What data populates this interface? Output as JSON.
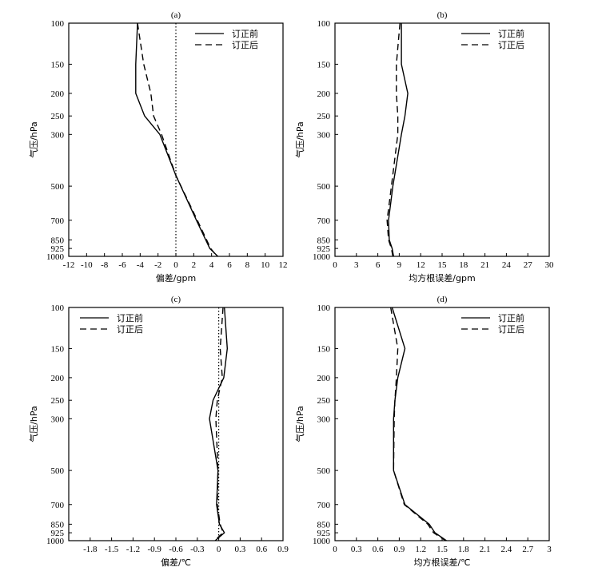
{
  "figure": {
    "line_color": "#000000",
    "line_styles": {
      "solid": "solid",
      "dashed": "dashed",
      "dotted_zero": "dotted"
    }
  },
  "chart_data": [
    {
      "type": "line",
      "panel": "(a)",
      "xlabel": "偏差/gpm",
      "ylabel": "气压/hPa",
      "xlim": [
        -12,
        12
      ],
      "xticks": [
        -12,
        -10,
        -8,
        -6,
        -4,
        -2,
        0,
        2,
        4,
        6,
        8,
        10,
        12
      ],
      "yticks": [
        100,
        150,
        200,
        250,
        300,
        500,
        700,
        850,
        925,
        1000
      ],
      "yscale": "log-inverted",
      "zero_line": true,
      "legend_position": "top-right",
      "series": [
        {
          "name": "订正前",
          "style": "solid",
          "points": [
            [
              -4.3,
              100
            ],
            [
              -4.5,
              150
            ],
            [
              -4.5,
              200
            ],
            [
              -3.5,
              250
            ],
            [
              -1.8,
              300
            ],
            [
              0,
              450
            ],
            [
              2.3,
              700
            ],
            [
              3.8,
              925
            ],
            [
              4.7,
              1000
            ]
          ]
        },
        {
          "name": "订正后",
          "style": "dashed",
          "points": [
            [
              -4.3,
              100
            ],
            [
              -3.6,
              150
            ],
            [
              -2.8,
              200
            ],
            [
              -2.5,
              250
            ],
            [
              -1.6,
              300
            ],
            [
              0,
              450
            ],
            [
              2.4,
              700
            ],
            [
              3.9,
              925
            ],
            [
              4.6,
              1000
            ]
          ]
        }
      ]
    },
    {
      "type": "line",
      "panel": "(b)",
      "xlabel": "均方根误差/gpm",
      "ylabel": "气压/hPa",
      "xlim": [
        0,
        30
      ],
      "xticks": [
        0,
        3,
        6,
        9,
        12,
        15,
        18,
        21,
        24,
        27,
        30
      ],
      "yticks": [
        100,
        150,
        200,
        250,
        300,
        500,
        700,
        850,
        925,
        1000
      ],
      "yscale": "log-inverted",
      "zero_line": false,
      "legend_position": "top-right",
      "series": [
        {
          "name": "订正前",
          "style": "solid",
          "points": [
            [
              9.3,
              100
            ],
            [
              9.3,
              150
            ],
            [
              10.2,
              200
            ],
            [
              9.8,
              250
            ],
            [
              9.3,
              300
            ],
            [
              8.1,
              500
            ],
            [
              7.5,
              700
            ],
            [
              7.6,
              850
            ],
            [
              8.0,
              925
            ],
            [
              8.2,
              1000
            ]
          ]
        },
        {
          "name": "订正后",
          "style": "dashed",
          "points": [
            [
              9.1,
              100
            ],
            [
              8.6,
              150
            ],
            [
              8.6,
              200
            ],
            [
              8.8,
              250
            ],
            [
              8.8,
              300
            ],
            [
              7.9,
              500
            ],
            [
              7.3,
              700
            ],
            [
              7.5,
              850
            ],
            [
              7.9,
              925
            ],
            [
              8.1,
              1000
            ]
          ]
        }
      ]
    },
    {
      "type": "line",
      "panel": "(c)",
      "xlabel": "偏差/℃",
      "ylabel": "气压/hPa",
      "xlim": [
        -2.1,
        0.9
      ],
      "xticks": [
        -1.8,
        -1.5,
        -1.2,
        -0.9,
        -0.6,
        -0.3,
        0,
        0.3,
        0.6,
        0.9
      ],
      "yticks": [
        100,
        150,
        200,
        250,
        300,
        500,
        700,
        850,
        925,
        1000
      ],
      "yscale": "log-inverted",
      "zero_line": true,
      "legend_position": "top-left",
      "series": [
        {
          "name": "订正前",
          "style": "solid",
          "points": [
            [
              0.08,
              100
            ],
            [
              0.12,
              150
            ],
            [
              0.07,
              200
            ],
            [
              -0.08,
              250
            ],
            [
              -0.13,
              300
            ],
            [
              -0.01,
              500
            ],
            [
              -0.03,
              700
            ],
            [
              0.01,
              850
            ],
            [
              0.08,
              925
            ],
            [
              -0.05,
              1000
            ]
          ]
        },
        {
          "name": "订正后",
          "style": "dashed",
          "points": [
            [
              0.06,
              100
            ],
            [
              0.02,
              150
            ],
            [
              0.05,
              200
            ],
            [
              -0.02,
              250
            ],
            [
              -0.04,
              300
            ],
            [
              -0.01,
              500
            ],
            [
              -0.02,
              700
            ],
            [
              0.02,
              850
            ],
            [
              0.06,
              925
            ],
            [
              -0.06,
              1000
            ]
          ]
        }
      ]
    },
    {
      "type": "line",
      "panel": "(d)",
      "xlabel": "均方根误差/℃",
      "ylabel": "气压/hPa",
      "xlim": [
        0,
        3.0
      ],
      "xticks": [
        0,
        0.3,
        0.6,
        0.9,
        1.2,
        1.5,
        1.8,
        2.1,
        2.4,
        2.7,
        3.0
      ],
      "yticks": [
        100,
        150,
        200,
        250,
        300,
        500,
        700,
        850,
        925,
        1000
      ],
      "yscale": "log-inverted",
      "zero_line": false,
      "legend_position": "top-right",
      "series": [
        {
          "name": "订正前",
          "style": "solid",
          "points": [
            [
              0.8,
              100
            ],
            [
              0.98,
              150
            ],
            [
              0.88,
              200
            ],
            [
              0.84,
              250
            ],
            [
              0.82,
              300
            ],
            [
              0.82,
              500
            ],
            [
              0.98,
              700
            ],
            [
              1.32,
              850
            ],
            [
              1.4,
              925
            ],
            [
              1.56,
              1000
            ]
          ]
        },
        {
          "name": "订正后",
          "style": "dashed",
          "points": [
            [
              0.78,
              100
            ],
            [
              0.88,
              150
            ],
            [
              0.86,
              200
            ],
            [
              0.84,
              250
            ],
            [
              0.83,
              300
            ],
            [
              0.82,
              500
            ],
            [
              0.97,
              700
            ],
            [
              1.3,
              850
            ],
            [
              1.38,
              925
            ],
            [
              1.55,
              1000
            ]
          ]
        }
      ]
    }
  ]
}
